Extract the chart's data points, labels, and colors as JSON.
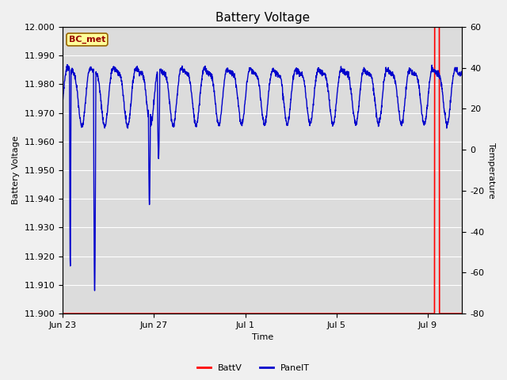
{
  "title": "Battery Voltage",
  "ylabel_left": "Battery Voltage",
  "ylabel_right": "Temperature",
  "xlabel": "Time",
  "ylim_left": [
    11.9,
    12.0
  ],
  "ylim_right": [
    -80,
    60
  ],
  "yticks_left": [
    11.9,
    11.91,
    11.92,
    11.93,
    11.94,
    11.95,
    11.96,
    11.97,
    11.98,
    11.99,
    12.0
  ],
  "yticks_right": [
    -80,
    -60,
    -40,
    -20,
    0,
    20,
    40,
    60
  ],
  "xtick_positions": [
    0,
    4,
    8,
    12,
    16
  ],
  "xtick_labels": [
    "Jun 23",
    "Jun 27",
    "Jul 1",
    "Jul 5",
    "Jul 9"
  ],
  "n_days": 17.5,
  "bg_color": "#dcdcdc",
  "grid_color": "#ffffff",
  "fig_bg_color": "#f0f0f0",
  "batt_color": "#ff0000",
  "panel_color": "#0000cc",
  "legend_label_batt": "BattV",
  "legend_label_panel": "PanelT",
  "annotation_text": "BC_met",
  "annotation_bg": "#ffff99",
  "annotation_border": "#996600",
  "annotation_text_color": "#990000",
  "title_fontsize": 11,
  "axis_label_fontsize": 8,
  "tick_fontsize": 8
}
